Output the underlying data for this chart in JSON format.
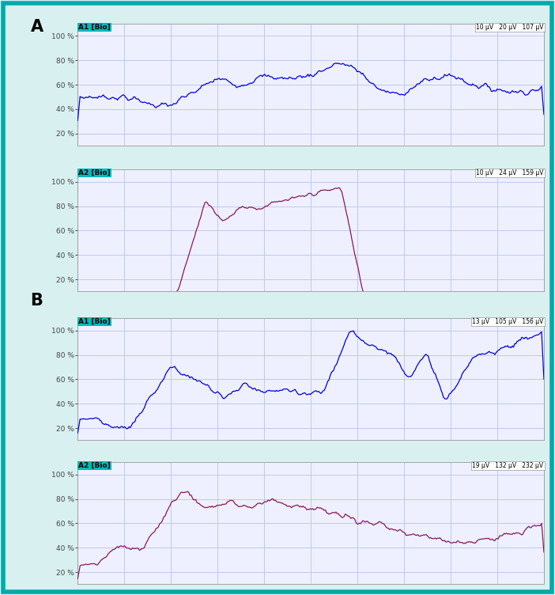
{
  "outer_bg": "#d8f0f0",
  "inner_bg": "#ffffff",
  "grid_color": "#b0b8e8",
  "plot_bg": "#eef0ff",
  "border_color": "#999999",
  "blue_color": "#0000dd",
  "purple_color": "#8b1560",
  "cyan_label_bg": "#00bbbb",
  "separator_color": "#888888",
  "tick_label_color": "#444444",
  "outer_border_color": "#00aaaa",
  "panels": [
    {
      "label": "A",
      "channel": "A1 [Bio]",
      "color": "#0000dd",
      "scale_text": "10 μV   20 μV   107 μV"
    },
    {
      "label": "",
      "channel": "A2 [Bio]",
      "color": "#8b1560",
      "scale_text": "10 μV   24 μV   159 μV"
    },
    {
      "label": "B",
      "channel": "A1 [Bio]",
      "color": "#0000dd",
      "scale_text": "13 μV   105 μV   156 μV"
    },
    {
      "label": "",
      "channel": "A2 [Bio]",
      "color": "#8b1560",
      "scale_text": "19 μV   132 μV   232 μV"
    }
  ],
  "yticks": [
    20,
    40,
    60,
    80,
    100
  ],
  "ylim": [
    10,
    110
  ],
  "n_points": 400
}
